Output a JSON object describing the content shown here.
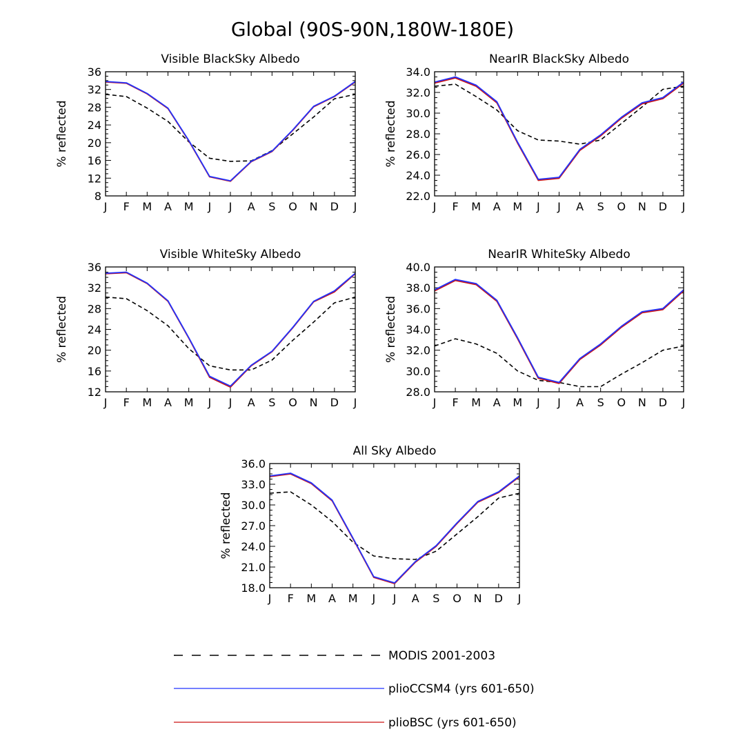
{
  "figure": {
    "title": "Global (90S-90N,180W-180E)"
  },
  "colors": {
    "modis": "#000000",
    "ccsm4": "#2233ff",
    "bsc": "#cc1111"
  },
  "legend": {
    "modis": "MODIS 2001-2003",
    "ccsm4": "plioCCSM4 (yrs 601-650)",
    "bsc": "plioBSC (yrs 601-650)"
  },
  "chart_data": [
    {
      "type": "line",
      "title": "Visible BlackSky Albedo",
      "xlabel": "",
      "ylabel": "% reflected",
      "categories": [
        "J",
        "F",
        "M",
        "A",
        "M",
        "J",
        "J",
        "A",
        "S",
        "O",
        "N",
        "D",
        "J"
      ],
      "ylim": [
        8,
        36
      ],
      "yticks": [
        "8",
        "12",
        "16",
        "20",
        "24",
        "28",
        "32",
        "36"
      ],
      "series": [
        {
          "name": "MODIS 2001-2003",
          "style": "dashed",
          "values": [
            30.9,
            30.4,
            27.8,
            24.8,
            20.2,
            16.5,
            15.8,
            15.9,
            18.2,
            22.0,
            25.8,
            29.9,
            30.9
          ]
        },
        {
          "name": "plioCCSM4 (yrs 601-650)",
          "style": "solid",
          "values": [
            33.8,
            33.5,
            31.1,
            27.8,
            20.5,
            12.4,
            11.4,
            15.8,
            18.1,
            22.9,
            28.2,
            30.5,
            33.8
          ]
        },
        {
          "name": "plioBSC (yrs 601-650)",
          "style": "solid",
          "values": [
            33.7,
            33.4,
            31.0,
            27.7,
            20.4,
            12.3,
            11.3,
            15.7,
            18.0,
            22.8,
            28.1,
            30.4,
            33.7
          ]
        }
      ]
    },
    {
      "type": "line",
      "title": "NearIR BlackSky Albedo",
      "xlabel": "",
      "ylabel": "% reflected",
      "categories": [
        "J",
        "F",
        "M",
        "A",
        "M",
        "J",
        "J",
        "A",
        "S",
        "O",
        "N",
        "D",
        "J"
      ],
      "ylim": [
        22,
        34
      ],
      "yticks": [
        "22.0",
        "24.0",
        "26.0",
        "28.0",
        "30.0",
        "32.0",
        "34.0"
      ],
      "series": [
        {
          "name": "MODIS 2001-2003",
          "style": "dashed",
          "values": [
            32.6,
            32.8,
            31.6,
            30.3,
            28.3,
            27.4,
            27.3,
            27.0,
            27.4,
            29.0,
            30.6,
            32.3,
            32.6
          ]
        },
        {
          "name": "plioCCSM4 (yrs 601-650)",
          "style": "solid",
          "values": [
            33.0,
            33.5,
            32.7,
            31.1,
            27.2,
            23.6,
            23.8,
            26.5,
            27.9,
            29.6,
            31.0,
            31.5,
            33.0
          ]
        },
        {
          "name": "plioBSC (yrs 601-650)",
          "style": "solid",
          "values": [
            32.9,
            33.4,
            32.6,
            31.0,
            27.1,
            23.5,
            23.7,
            26.4,
            27.8,
            29.5,
            30.9,
            31.4,
            32.9
          ]
        }
      ]
    },
    {
      "type": "line",
      "title": "Visible WhiteSky Albedo",
      "xlabel": "",
      "ylabel": "% reflected",
      "categories": [
        "J",
        "F",
        "M",
        "A",
        "M",
        "J",
        "J",
        "A",
        "S",
        "O",
        "N",
        "D",
        "J"
      ],
      "ylim": [
        12,
        36
      ],
      "yticks": [
        "12",
        "16",
        "20",
        "24",
        "28",
        "32",
        "36"
      ],
      "series": [
        {
          "name": "MODIS 2001-2003",
          "style": "dashed",
          "values": [
            30.2,
            29.9,
            27.6,
            24.7,
            20.3,
            17.0,
            16.2,
            16.2,
            18.1,
            21.9,
            25.4,
            29.1,
            30.2
          ]
        },
        {
          "name": "plioCCSM4 (yrs 601-650)",
          "style": "solid",
          "values": [
            34.8,
            35.0,
            32.9,
            29.5,
            22.4,
            15.0,
            13.1,
            17.1,
            19.8,
            24.4,
            29.4,
            31.4,
            34.8
          ]
        },
        {
          "name": "plioBSC (yrs 601-650)",
          "style": "solid",
          "values": [
            34.7,
            34.9,
            32.8,
            29.4,
            22.3,
            14.8,
            12.9,
            17.0,
            19.7,
            24.3,
            29.3,
            31.2,
            34.7
          ]
        }
      ]
    },
    {
      "type": "line",
      "title": "NearIR WhiteSky Albedo",
      "xlabel": "",
      "ylabel": "% reflected",
      "categories": [
        "J",
        "F",
        "M",
        "A",
        "M",
        "J",
        "J",
        "A",
        "S",
        "O",
        "N",
        "D",
        "J"
      ],
      "ylim": [
        28,
        40
      ],
      "yticks": [
        "28.0",
        "30.0",
        "32.0",
        "34.0",
        "36.0",
        "38.0",
        "40.0"
      ],
      "series": [
        {
          "name": "MODIS 2001-2003",
          "style": "dashed",
          "values": [
            32.4,
            33.1,
            32.6,
            31.7,
            30.0,
            29.1,
            28.9,
            28.5,
            28.5,
            29.7,
            30.8,
            32.0,
            32.4
          ]
        },
        {
          "name": "plioCCSM4 (yrs 601-650)",
          "style": "solid",
          "values": [
            37.8,
            38.8,
            38.4,
            36.8,
            33.2,
            29.4,
            28.9,
            31.2,
            32.6,
            34.3,
            35.7,
            36.0,
            37.8
          ]
        },
        {
          "name": "plioBSC (yrs 601-650)",
          "style": "solid",
          "values": [
            37.7,
            38.7,
            38.3,
            36.7,
            33.1,
            29.3,
            28.8,
            31.1,
            32.5,
            34.2,
            35.6,
            35.9,
            37.7
          ]
        }
      ]
    },
    {
      "type": "line",
      "title": "All Sky Albedo",
      "xlabel": "",
      "ylabel": "% reflected",
      "categories": [
        "J",
        "F",
        "M",
        "A",
        "M",
        "J",
        "J",
        "A",
        "S",
        "O",
        "N",
        "D",
        "J"
      ],
      "ylim": [
        18,
        36
      ],
      "yticks": [
        "18.0",
        "21.0",
        "24.0",
        "27.0",
        "30.0",
        "33.0",
        "36.0"
      ],
      "series": [
        {
          "name": "MODIS 2001-2003",
          "style": "dashed",
          "values": [
            31.7,
            31.9,
            30.0,
            27.6,
            24.6,
            22.6,
            22.2,
            22.1,
            23.3,
            25.8,
            28.3,
            31.0,
            31.7
          ]
        },
        {
          "name": "plioCCSM4 (yrs 601-650)",
          "style": "solid",
          "values": [
            34.2,
            34.6,
            33.2,
            30.7,
            25.2,
            19.6,
            18.7,
            21.8,
            24.1,
            27.4,
            30.5,
            31.9,
            34.2
          ]
        },
        {
          "name": "plioBSC (yrs 601-650)",
          "style": "solid",
          "values": [
            34.1,
            34.5,
            33.1,
            30.6,
            25.1,
            19.5,
            18.6,
            21.7,
            24.0,
            27.3,
            30.4,
            31.8,
            34.1
          ]
        }
      ]
    }
  ]
}
